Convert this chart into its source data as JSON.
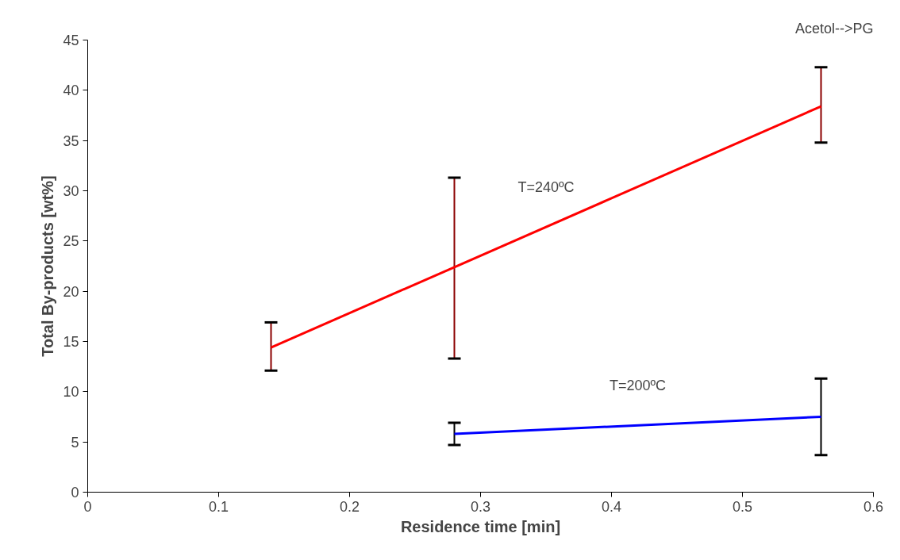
{
  "chart_data": {
    "type": "line",
    "xlabel": "Residence time [min]",
    "ylabel": "Total By-products [wt%]",
    "xlim": [
      0,
      0.6
    ],
    "xticks": [
      0,
      0.1,
      0.2,
      0.3,
      0.4,
      0.5,
      0.6
    ],
    "ylim": [
      0,
      45
    ],
    "yticks": [
      0,
      5,
      10,
      15,
      20,
      25,
      30,
      35,
      40,
      45
    ],
    "grid": false,
    "legend": false,
    "marker": "none",
    "line_style": "solid",
    "series": [
      {
        "name": "T=240ºC",
        "color": "#ff0000",
        "x": [
          0.14,
          0.28,
          0.56
        ],
        "values": [
          14.4,
          22.4,
          38.4
        ],
        "errors": [
          [
            12.1,
            16.9
          ],
          [
            13.3,
            31.3
          ],
          [
            34.8,
            42.3
          ]
        ]
      },
      {
        "name": "T=200ºC",
        "color": "#0000ff",
        "x": [
          0.28,
          0.56
        ],
        "values": [
          5.8,
          7.5
        ],
        "errors": [
          [
            4.7,
            6.9
          ],
          [
            3.7,
            11.3
          ]
        ]
      }
    ],
    "annotations": [
      "Acetol-->PG"
    ]
  }
}
